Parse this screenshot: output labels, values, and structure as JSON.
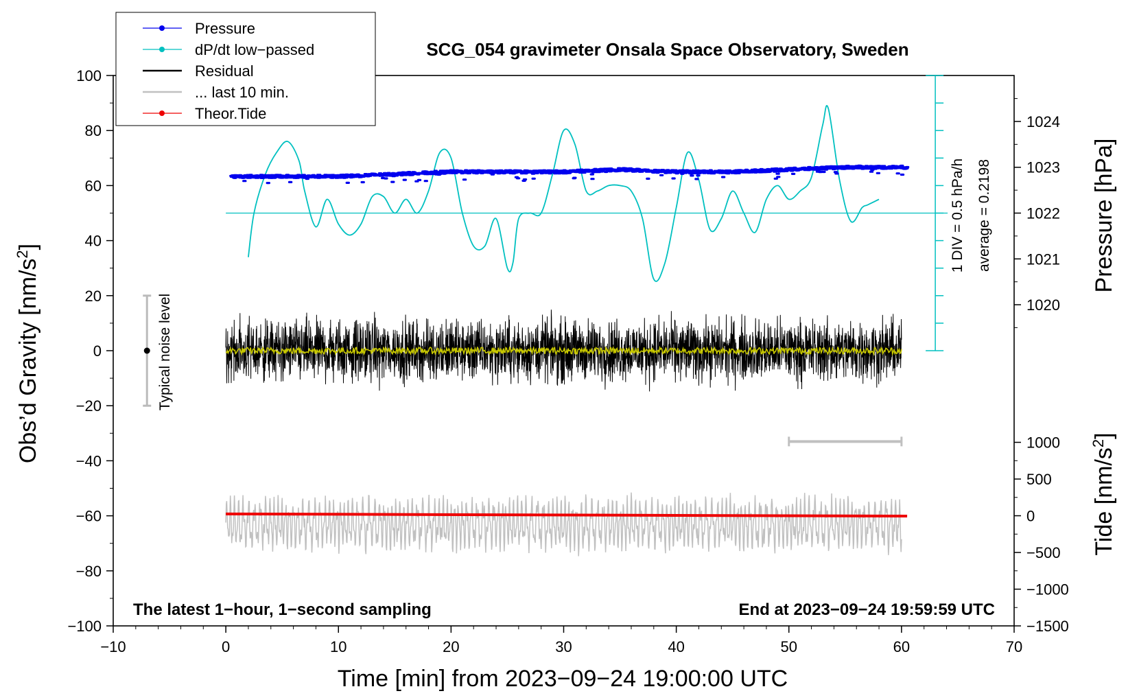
{
  "chart_data": {
    "type": "line",
    "title": "SCG_054 gravimeter Onsala Space Observatory, Sweden",
    "xlabel": "Time [min] from 2023−09−24 19:00:00 UTC",
    "ylabel_left": "Obs’d Gravity [nm/s",
    "ylabel_left_sup": "2",
    "ylabel_left_end": "]",
    "ylabel_right_top": "Pressure [hPa]",
    "ylabel_right_bottom": "Tide [nm/s",
    "ylabel_right_bottom_sup": "2",
    "ylabel_right_bottom_end": "]",
    "xlim": [
      -10,
      70
    ],
    "ylim": [
      -100,
      100
    ],
    "x_ticks": [
      {
        "v": -10,
        "label": "−10"
      },
      {
        "v": 0,
        "label": "0"
      },
      {
        "v": 10,
        "label": "10"
      },
      {
        "v": 20,
        "label": "20"
      },
      {
        "v": 30,
        "label": "30"
      },
      {
        "v": 40,
        "label": "40"
      },
      {
        "v": 50,
        "label": "50"
      },
      {
        "v": 60,
        "label": "60"
      },
      {
        "v": 70,
        "label": "70"
      }
    ],
    "y_ticks": [
      {
        "v": 100,
        "label": "100"
      },
      {
        "v": 80,
        "label": "80"
      },
      {
        "v": 60,
        "label": "60"
      },
      {
        "v": 40,
        "label": "40"
      },
      {
        "v": 20,
        "label": "20"
      },
      {
        "v": 0,
        "label": "0"
      },
      {
        "v": -20,
        "label": "−20"
      },
      {
        "v": -40,
        "label": "−40"
      },
      {
        "v": -60,
        "label": "−60"
      },
      {
        "v": -80,
        "label": "−80"
      },
      {
        "v": -100,
        "label": "−100"
      }
    ],
    "pressure_axis": {
      "ticks": [
        {
          "hpa": 1024,
          "label": "1024"
        },
        {
          "hpa": 1023,
          "label": "1023"
        },
        {
          "hpa": 1022,
          "label": "1022"
        },
        {
          "hpa": 1021,
          "label": "1021"
        },
        {
          "hpa": 1020,
          "label": "1020"
        }
      ],
      "map_hpa": [
        1020,
        1024
      ],
      "map_gravity": [
        16.7,
        83.3
      ]
    },
    "tide_axis": {
      "ticks": [
        {
          "v": 1000,
          "label": "1000"
        },
        {
          "v": 500,
          "label": "500"
        },
        {
          "v": 0,
          "label": "0"
        },
        {
          "v": -500,
          "label": "−500"
        },
        {
          "v": -1000,
          "label": "−1000"
        },
        {
          "v": -1500,
          "label": "−1500"
        }
      ],
      "map_tide": [
        -1500,
        1000
      ],
      "map_gravity": [
        -100,
        -33.3
      ]
    },
    "legend": [
      {
        "label": "Pressure",
        "color": "#0000ee",
        "marker": true
      },
      {
        "label": "dP/dt low−passed",
        "color": "#00c0c0",
        "marker": true
      },
      {
        "label": "Residual",
        "color": "#000000",
        "marker": false
      },
      {
        "label": "... last 10 min.",
        "color": "#c0c0c0",
        "marker": false
      },
      {
        "label": "Theor.Tide",
        "color": "#ee0000",
        "marker": true
      }
    ],
    "series": [
      {
        "name": "Pressure",
        "color": "#0000ee",
        "unit": "hPa",
        "x": [
          0.5,
          5,
          10,
          15,
          20,
          25,
          30,
          35,
          40,
          45,
          50,
          55,
          60.5
        ],
        "y": [
          1022.8,
          1022.8,
          1022.8,
          1022.85,
          1022.9,
          1022.9,
          1022.9,
          1022.95,
          1022.9,
          1022.9,
          1022.95,
          1023.0,
          1023.0
        ]
      },
      {
        "name": "dP/dt low−passed",
        "color": "#00c0c0",
        "unit": "gravity-plot units",
        "x": [
          2,
          2.5,
          3.5,
          4.5,
          5.5,
          6.5,
          7,
          8,
          9,
          10,
          11,
          12,
          13,
          14,
          15,
          16,
          17,
          18,
          19,
          20,
          21,
          22,
          23,
          24,
          25,
          25.5,
          26,
          27,
          28,
          29,
          30,
          31,
          32,
          33,
          34,
          35,
          36,
          37,
          38,
          39,
          40,
          41,
          42,
          43,
          44,
          45,
          46,
          47,
          48,
          49,
          50,
          51,
          52,
          53,
          53.5,
          54.5,
          55.5,
          56.5,
          57,
          58
        ],
        "y": [
          34,
          50,
          64,
          72,
          76,
          69,
          58,
          45,
          55,
          46,
          42,
          46,
          56,
          56,
          50,
          55,
          50,
          58,
          72,
          70,
          50,
          38,
          38,
          48,
          30,
          32,
          48,
          50,
          50,
          64,
          80,
          75,
          58,
          58,
          60,
          60,
          58,
          48,
          26,
          32,
          52,
          72,
          62,
          44,
          48,
          58,
          50,
          43,
          55,
          60,
          55,
          58,
          63,
          82,
          88,
          62,
          47,
          52,
          53,
          55
        ]
      },
      {
        "name": "Residual",
        "color": "#000000",
        "x_range": [
          0,
          60
        ],
        "amplitude": 12,
        "mean": 0
      },
      {
        "name": "Residual smoothed",
        "color": "#c8c800",
        "x_range": [
          0,
          60
        ],
        "amplitude": 1.5,
        "mean": 0
      },
      {
        "name": "... last 10 min.",
        "color": "#c0c0c0",
        "x_range": [
          0,
          60
        ],
        "mean": -63,
        "amplitude": 10
      },
      {
        "name": "Theor.Tide",
        "color": "#ee0000",
        "unit": "nm/s2",
        "x": [
          0,
          60.5
        ],
        "y": [
          25,
          -5
        ]
      }
    ],
    "noise_bar": {
      "label": "Typical noise level",
      "x": -7,
      "y": 0,
      "low": -20,
      "high": 20
    },
    "pressure_scale": {
      "div_label": "1 DIV = 0.5 hPa/h",
      "average_label": "average = 0.2198",
      "x": 63,
      "baseline": 50,
      "top": 100,
      "bottom": 0
    },
    "window_bar": {
      "x1": 50,
      "x2": 60,
      "y": -33
    },
    "annotations": {
      "left_bottom": "The latest 1−hour, 1−second sampling",
      "right_bottom": "End at 2023−09−24 19:59:59 UTC"
    }
  }
}
